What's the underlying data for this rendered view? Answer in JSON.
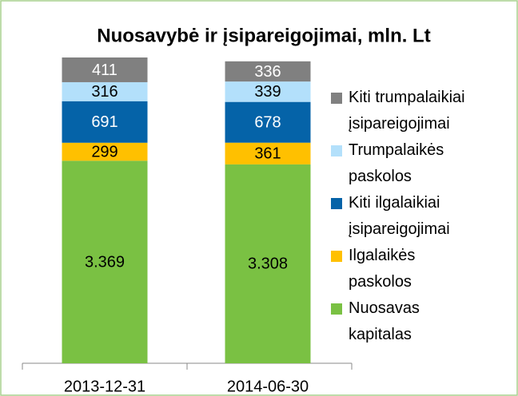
{
  "chart_data": {
    "type": "stacked_bar",
    "title": "Nuosavybė ir įsipareigojimai, mln. Lt",
    "categories": [
      "2013-12-31",
      "2014-06-30"
    ],
    "ylim": [
      0,
      5086
    ],
    "series": [
      {
        "name": "Nuosavas kapitalas",
        "color": "#7ac143",
        "values": [
          3369,
          3308
        ],
        "value_labels": [
          "3.369",
          "3.308"
        ]
      },
      {
        "name": "Ilgalaikės paskolos",
        "color": "#ffc000",
        "values": [
          299,
          361
        ]
      },
      {
        "name": "Kiti ilgalaikiai įsipareigojimai",
        "color": "#0563a8",
        "values": [
          691,
          678
        ]
      },
      {
        "name": "Trumpalaikės paskolos",
        "color": "#b3e0fb",
        "values": [
          316,
          339
        ]
      },
      {
        "name": "Kiti trumpalaikiai įsipareigojimai",
        "color": "#808080",
        "values": [
          411,
          336
        ]
      }
    ],
    "legend": "right"
  }
}
